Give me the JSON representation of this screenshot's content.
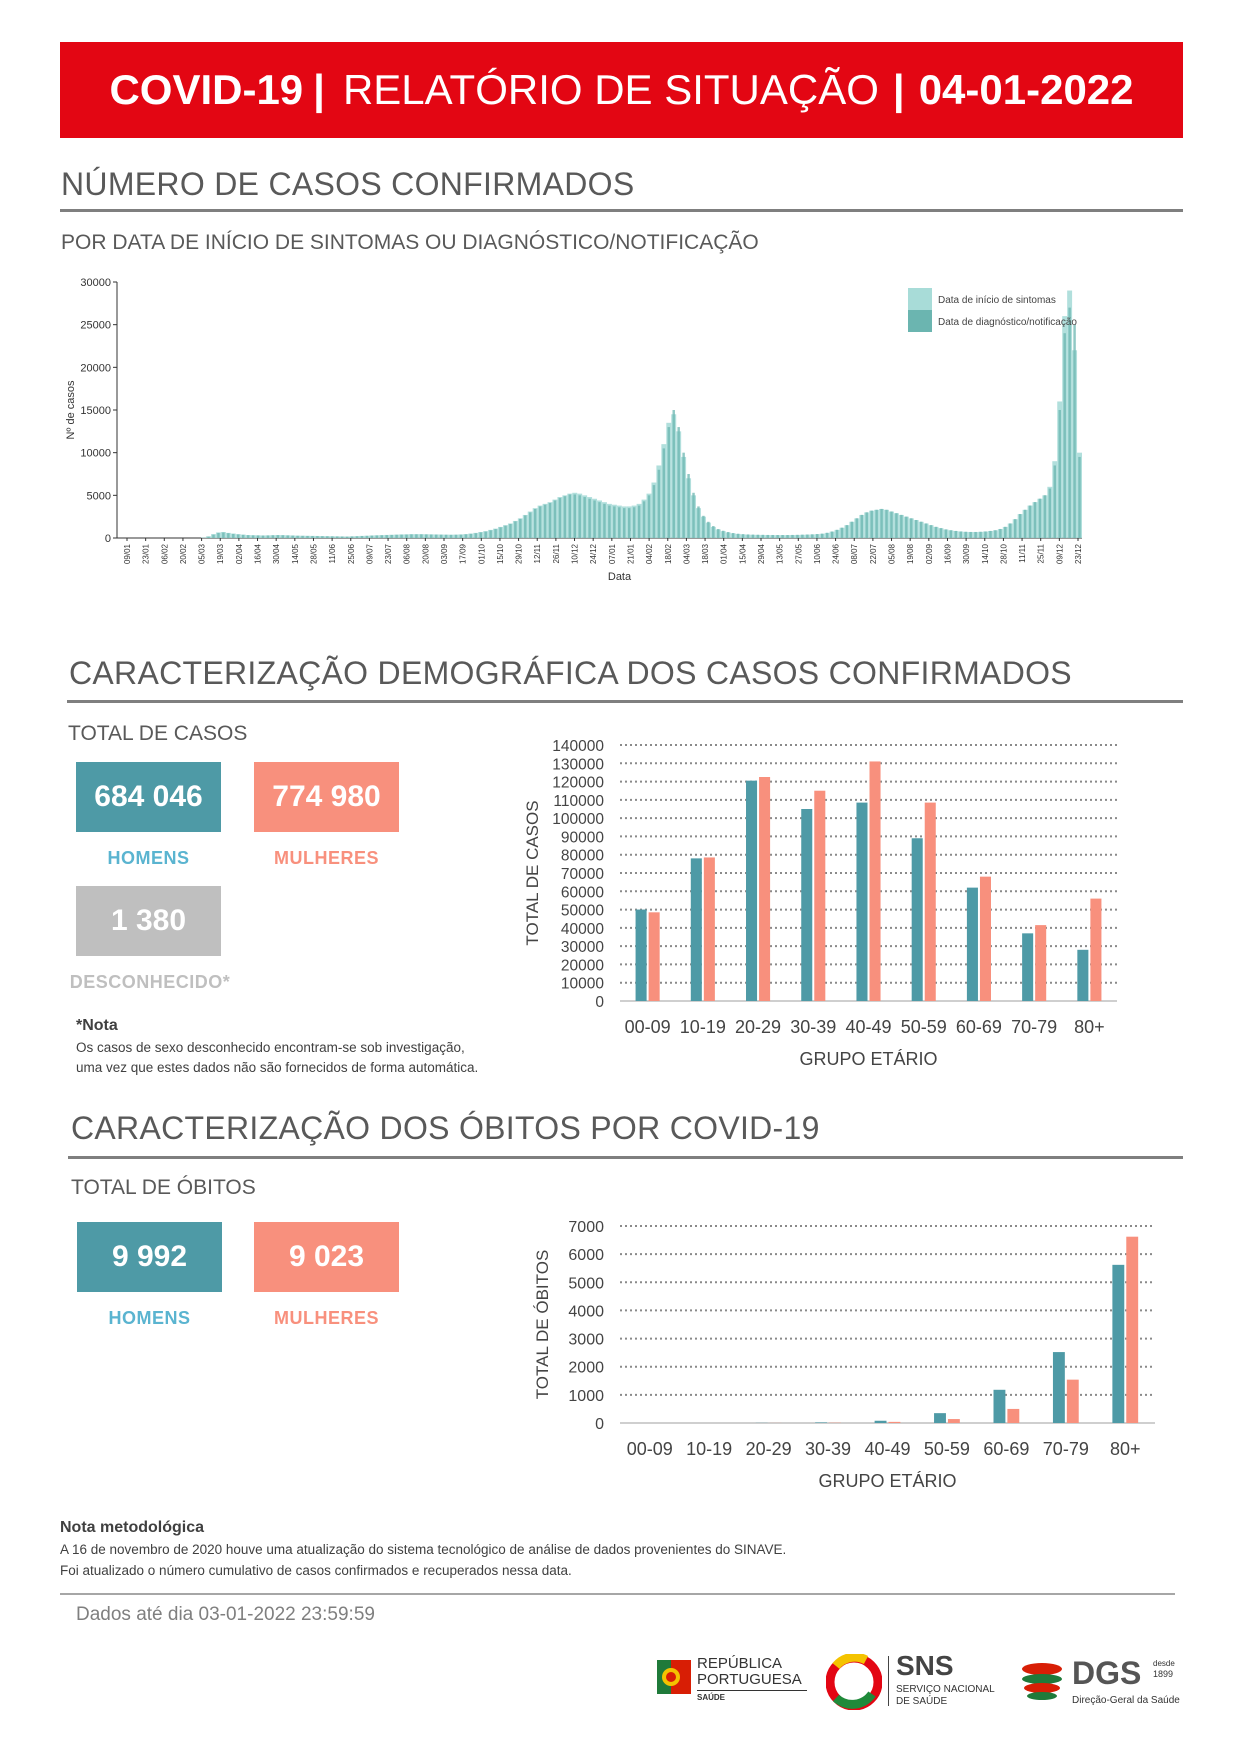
{
  "header": {
    "title_bold": "COVID-19",
    "title_sep": "|",
    "title_light": "RELATÓRIO DE SITUAÇÃO",
    "title_sep2": "|",
    "date": "04-01-2022"
  },
  "section1": {
    "title": "NÚMERO DE CASOS CONFIRMADOS",
    "subtitle": "POR DATA DE INÍCIO DE SINTOMAS OU DIAGNÓSTICO/NOTIFICAÇÃO"
  },
  "section2": {
    "title": "CARACTERIZAÇÃO DEMOGRÁFICA DOS CASOS CONFIRMADOS",
    "total_label": "TOTAL DE CASOS",
    "men_value": "684 046",
    "men_label": "HOMENS",
    "women_value": "774 980",
    "women_label": "MULHERES",
    "unknown_value": "1 380",
    "unknown_label": "DESCONHECIDO*",
    "note_title": "*Nota",
    "note_line1": "Os casos de sexo desconhecido encontram-se sob investigação,",
    "note_line2": "uma vez que estes dados não são fornecidos de forma automática."
  },
  "section3": {
    "title": "CARACTERIZAÇÃO DOS ÓBITOS POR COVID-19",
    "total_label": "TOTAL DE ÓBITOS",
    "men_value": "9 992",
    "men_label": "HOMENS",
    "women_value": "9 023",
    "women_label": "MULHERES"
  },
  "methodology": {
    "title": "Nota metodológica",
    "line1": "A 16 de novembro de 2020 houve uma atualização do sistema tecnológico de análise de dados provenientes do SINAVE.",
    "line2": "Foi atualizado o número cumulativo de casos confirmados e recuperados nessa data."
  },
  "footer": {
    "data_until": "Dados até dia 03-01-2022 23:59:59",
    "logo1_line1": "REPÚBLICA",
    "logo1_line2": "PORTUGUESA",
    "logo1_line3": "SAÚDE",
    "logo2_main": "SNS",
    "logo2_line1": "SERVIÇO NACIONAL",
    "logo2_line2": "DE SAÚDE",
    "logo3_main": "DGS",
    "logo3_since1": "desde",
    "logo3_since2": "1899",
    "logo3_sub": "Direção-Geral da Saúde"
  },
  "colors": {
    "banner_red": "#e30613",
    "teal": "#4e9aa6",
    "salmon": "#f8907d",
    "gray": "#bfbfbf",
    "light_teal": "#a8dcd8",
    "dark_teal": "#6bb5b0"
  },
  "chart_data": [
    {
      "type": "bar",
      "ylabel": "Nº de casos",
      "xlabel": "Data",
      "ylim": [
        0,
        30000
      ],
      "yticks": [
        0,
        5000,
        10000,
        15000,
        20000,
        25000,
        30000
      ],
      "grid": false,
      "legend_position": "top-right",
      "x_ticks": [
        "09/01",
        "23/01",
        "06/02",
        "20/02",
        "05/03",
        "19/03",
        "02/04",
        "16/04",
        "30/04",
        "14/05",
        "28/05",
        "11/06",
        "25/06",
        "09/07",
        "23/07",
        "06/08",
        "20/08",
        "03/09",
        "17/09",
        "01/10",
        "15/10",
        "29/10",
        "12/11",
        "26/11",
        "10/12",
        "24/12",
        "07/01",
        "21/01",
        "04/02",
        "18/02",
        "04/03",
        "18/03",
        "01/04",
        "15/04",
        "29/04",
        "13/05",
        "27/05",
        "10/06",
        "24/06",
        "08/07",
        "22/07",
        "05/08",
        "19/08",
        "02/09",
        "16/09",
        "30/09",
        "14/10",
        "28/10",
        "11/11",
        "25/11",
        "09/12",
        "23/12"
      ],
      "series": [
        {
          "name": "Data de início de sintomas",
          "color": "#a8dcd8",
          "values": [
            0,
            0,
            0,
            0,
            0,
            0,
            0,
            0,
            0,
            0,
            0,
            0,
            0,
            0,
            0,
            0,
            0,
            50,
            200,
            450,
            650,
            700,
            600,
            520,
            450,
            400,
            350,
            330,
            320,
            300,
            310,
            330,
            350,
            340,
            320,
            300,
            280,
            270,
            260,
            250,
            240,
            230,
            220,
            210,
            200,
            190,
            180,
            200,
            220,
            250,
            270,
            300,
            320,
            340,
            360,
            380,
            400,
            420,
            430,
            450,
            450,
            450,
            440,
            430,
            420,
            410,
            400,
            390,
            400,
            420,
            460,
            520,
            600,
            700,
            800,
            950,
            1100,
            1300,
            1500,
            1700,
            2000,
            2300,
            2700,
            3100,
            3500,
            3800,
            4000,
            4200,
            4500,
            4800,
            5000,
            5200,
            5300,
            5200,
            5000,
            4800,
            4600,
            4400,
            4200,
            4000,
            3900,
            3800,
            3700,
            3700,
            3800,
            4000,
            4500,
            5200,
            6500,
            8500,
            11000,
            13500,
            14500,
            12500,
            9500,
            7000,
            5000,
            3500,
            2500,
            1800,
            1300,
            1000,
            800,
            650,
            550,
            480,
            430,
            400,
            380,
            370,
            360,
            350,
            345,
            340,
            340,
            340,
            350,
            360,
            380,
            400,
            420,
            450,
            500,
            600,
            750,
            950,
            1200,
            1500,
            1900,
            2300,
            2700,
            3000,
            3200,
            3300,
            3400,
            3300,
            3100,
            2900,
            2700,
            2500,
            2300,
            2100,
            1900,
            1700,
            1500,
            1300,
            1150,
            1000,
            900,
            820,
            760,
            720,
            700,
            700,
            720,
            760,
            820,
            900,
            1050,
            1300,
            1700,
            2200,
            2800,
            3300,
            3800,
            4200,
            4600,
            5000,
            6000,
            9000,
            16000,
            26000,
            29000,
            22000,
            10000
          ]
        },
        {
          "name": "Data de diagnóstico/notificação",
          "color": "#6bb5b0",
          "values": [
            0,
            0,
            0,
            0,
            0,
            0,
            0,
            0,
            0,
            0,
            0,
            0,
            0,
            0,
            0,
            0,
            0,
            30,
            150,
            400,
            600,
            650,
            560,
            480,
            420,
            370,
            330,
            310,
            300,
            290,
            300,
            320,
            330,
            320,
            300,
            280,
            260,
            250,
            240,
            230,
            220,
            210,
            200,
            190,
            180,
            170,
            160,
            180,
            200,
            230,
            250,
            280,
            300,
            320,
            340,
            360,
            380,
            400,
            410,
            430,
            430,
            430,
            420,
            410,
            400,
            390,
            380,
            370,
            380,
            400,
            430,
            490,
            560,
            660,
            760,
            900,
            1050,
            1250,
            1450,
            1650,
            1950,
            2250,
            2650,
            3000,
            3400,
            3700,
            3900,
            4100,
            4400,
            4700,
            4900,
            5100,
            5100,
            5000,
            4800,
            4600,
            4400,
            4200,
            4000,
            3800,
            3700,
            3600,
            3500,
            3500,
            3600,
            3800,
            4300,
            5000,
            6200,
            8000,
            10500,
            13000,
            15000,
            13000,
            10000,
            7500,
            5300,
            3700,
            2600,
            1900,
            1400,
            1050,
            850,
            700,
            580,
            500,
            450,
            420,
            400,
            380,
            370,
            360,
            355,
            350,
            350,
            350,
            360,
            370,
            390,
            410,
            430,
            460,
            510,
            610,
            760,
            960,
            1210,
            1510,
            1910,
            2310,
            2710,
            3010,
            3210,
            3310,
            3410,
            3310,
            3110,
            2910,
            2710,
            2510,
            2310,
            2110,
            1910,
            1710,
            1510,
            1310,
            1160,
            1010,
            910,
            830,
            770,
            730,
            710,
            710,
            730,
            770,
            830,
            910,
            1060,
            1310,
            1710,
            2210,
            2810,
            3310,
            3810,
            4210,
            4610,
            5010,
            5800,
            8500,
            15000,
            24000,
            27000,
            25000,
            9500
          ]
        }
      ]
    },
    {
      "type": "bar",
      "xlabel": "GRUPO ETÁRIO",
      "ylabel": "TOTAL DE CASOS",
      "ylim": [
        0,
        140000
      ],
      "yticks": [
        0,
        10000,
        20000,
        30000,
        40000,
        50000,
        60000,
        70000,
        80000,
        90000,
        100000,
        110000,
        120000,
        130000,
        140000
      ],
      "categories": [
        "00-09",
        "10-19",
        "20-29",
        "30-39",
        "40-49",
        "50-59",
        "60-69",
        "70-79",
        "80+"
      ],
      "grid": true,
      "series": [
        {
          "name": "HOMENS",
          "color": "#4e9aa6",
          "values": [
            50000,
            78000,
            120500,
            105000,
            108500,
            89000,
            62000,
            37000,
            28000
          ]
        },
        {
          "name": "MULHERES",
          "color": "#f8907d",
          "values": [
            48500,
            78500,
            122500,
            115000,
            131000,
            108500,
            68000,
            41500,
            56000
          ]
        }
      ]
    },
    {
      "type": "bar",
      "xlabel": "GRUPO ETÁRIO",
      "ylabel": "TOTAL DE ÓBITOS",
      "ylim": [
        0,
        7000
      ],
      "yticks": [
        0,
        1000,
        2000,
        3000,
        4000,
        5000,
        6000,
        7000
      ],
      "categories": [
        "00-09",
        "10-19",
        "20-29",
        "30-39",
        "40-49",
        "50-59",
        "60-69",
        "70-79",
        "80+"
      ],
      "grid": true,
      "series": [
        {
          "name": "HOMENS",
          "color": "#4e9aa6",
          "values": [
            0,
            0,
            5,
            20,
            80,
            350,
            1180,
            2520,
            5620
          ]
        },
        {
          "name": "MULHERES",
          "color": "#f8907d",
          "values": [
            0,
            0,
            3,
            10,
            40,
            140,
            500,
            1540,
            6620
          ]
        }
      ]
    }
  ]
}
